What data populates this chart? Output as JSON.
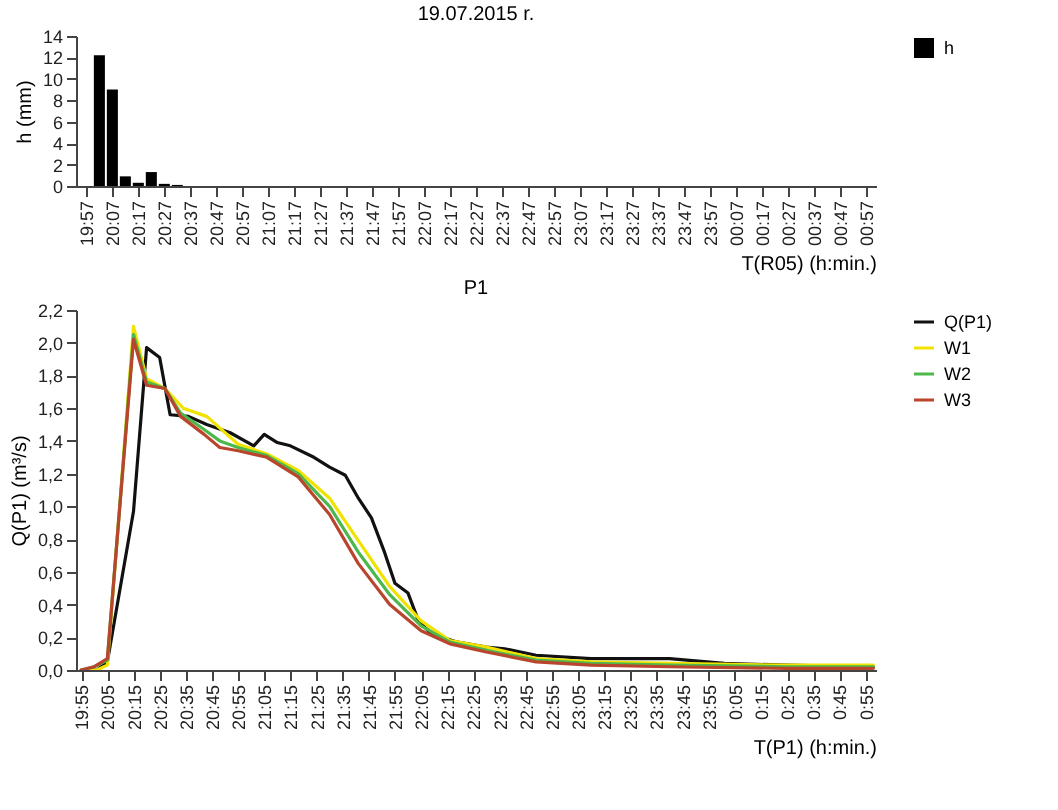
{
  "chart_data": [
    {
      "type": "bar",
      "title": "19.07.2015 r.",
      "xlabel": "T(R05) (h:min.)",
      "ylabel": "h (mm)",
      "legend": "right",
      "grid": false,
      "x": [
        "2015-07-19T20:02",
        "2015-07-19T20:07",
        "2015-07-19T20:12",
        "2015-07-19T20:17",
        "2015-07-19T20:22",
        "2015-07-19T20:27",
        "2015-07-19T20:32"
      ],
      "series": [
        {
          "name": "h",
          "color": "#000000",
          "values": [
            12.2,
            9.0,
            0.9,
            0.3,
            1.3,
            0.2,
            0.1
          ]
        }
      ],
      "xlim": [
        "2015-07-19T19:53",
        "2015-07-20T01:01"
      ],
      "ylim": [
        0,
        14
      ],
      "yticks": [
        0,
        2,
        4,
        6,
        8,
        10,
        12,
        14
      ],
      "xticks": [
        {
          "value": "2015-07-19T19:57",
          "label": "19:57"
        },
        {
          "value": "2015-07-19T20:07",
          "label": "20:07"
        },
        {
          "value": "2015-07-19T20:17",
          "label": "20:17"
        },
        {
          "value": "2015-07-19T20:27",
          "label": "20:27"
        },
        {
          "value": "2015-07-19T20:37",
          "label": "20:37"
        },
        {
          "value": "2015-07-19T20:47",
          "label": "20:47"
        },
        {
          "value": "2015-07-19T20:57",
          "label": "20:57"
        },
        {
          "value": "2015-07-19T21:07",
          "label": "21:07"
        },
        {
          "value": "2015-07-19T21:17",
          "label": "21:17"
        },
        {
          "value": "2015-07-19T21:27",
          "label": "21:27"
        },
        {
          "value": "2015-07-19T21:37",
          "label": "21:37"
        },
        {
          "value": "2015-07-19T21:47",
          "label": "21:47"
        },
        {
          "value": "2015-07-19T21:57",
          "label": "21:57"
        },
        {
          "value": "2015-07-19T22:07",
          "label": "22:07"
        },
        {
          "value": "2015-07-19T22:17",
          "label": "22:17"
        },
        {
          "value": "2015-07-19T22:27",
          "label": "22:27"
        },
        {
          "value": "2015-07-19T22:37",
          "label": "22:37"
        },
        {
          "value": "2015-07-19T22:47",
          "label": "22:47"
        },
        {
          "value": "2015-07-19T22:57",
          "label": "22:57"
        },
        {
          "value": "2015-07-19T23:07",
          "label": "23:07"
        },
        {
          "value": "2015-07-19T23:17",
          "label": "23:17"
        },
        {
          "value": "2015-07-19T23:27",
          "label": "23:27"
        },
        {
          "value": "2015-07-19T23:37",
          "label": "23:37"
        },
        {
          "value": "2015-07-19T23:47",
          "label": "23:47"
        },
        {
          "value": "2015-07-19T23:57",
          "label": "23:57"
        },
        {
          "value": "2015-07-20T00:07",
          "label": "00:07"
        },
        {
          "value": "2015-07-20T00:17",
          "label": "00:17"
        },
        {
          "value": "2015-07-20T00:27",
          "label": "00:27"
        },
        {
          "value": "2015-07-20T00:37",
          "label": "00:37"
        },
        {
          "value": "2015-07-20T00:47",
          "label": "00:47"
        },
        {
          "value": "2015-07-20T00:57",
          "label": "00:57"
        }
      ]
    },
    {
      "type": "line",
      "title": "P1",
      "xlabel": "T(P1) (h:min.)",
      "ylabel": "Q(P1) (m³/s)",
      "legend": "right",
      "grid": false,
      "line_style": "solid",
      "series": [
        {
          "name": "Q(P1)",
          "color": "#111111",
          "x": [
            "2015-07-19T19:55",
            "2015-07-19T20:01",
            "2015-07-19T20:05",
            "2015-07-19T20:15",
            "2015-07-19T20:20",
            "2015-07-19T20:25",
            "2015-07-19T20:29",
            "2015-07-19T20:36",
            "2015-07-19T20:43",
            "2015-07-19T20:52",
            "2015-07-19T21:01",
            "2015-07-19T21:05",
            "2015-07-19T21:10",
            "2015-07-19T21:15",
            "2015-07-19T21:24",
            "2015-07-19T21:30",
            "2015-07-19T21:36",
            "2015-07-19T21:41",
            "2015-07-19T21:46",
            "2015-07-19T21:51",
            "2015-07-19T21:55",
            "2015-07-19T22:00",
            "2015-07-19T22:04",
            "2015-07-19T22:09",
            "2015-07-19T22:19",
            "2015-07-19T22:30",
            "2015-07-19T22:37",
            "2015-07-19T22:49",
            "2015-07-19T23:10",
            "2015-07-19T23:40",
            "2015-07-20T00:01",
            "2015-07-20T00:25",
            "2015-07-20T00:58"
          ],
          "values": [
            0,
            0,
            0.05,
            0.97,
            1.97,
            1.91,
            1.56,
            1.55,
            1.5,
            1.45,
            1.37,
            1.44,
            1.39,
            1.37,
            1.3,
            1.24,
            1.19,
            1.05,
            0.93,
            0.72,
            0.53,
            0.47,
            0.3,
            0.22,
            0.17,
            0.14,
            0.13,
            0.09,
            0.07,
            0.07,
            0.04,
            0.03,
            0.02
          ]
        },
        {
          "name": "W1",
          "color": "#f2e200",
          "x": [
            "2015-07-19T19:55",
            "2015-07-19T20:01",
            "2015-07-19T20:05",
            "2015-07-19T20:15",
            "2015-07-19T20:20",
            "2015-07-19T20:27",
            "2015-07-19T20:34",
            "2015-07-19T20:43",
            "2015-07-19T20:55",
            "2015-07-19T21:06",
            "2015-07-19T21:18",
            "2015-07-19T21:30",
            "2015-07-19T21:41",
            "2015-07-19T21:53",
            "2015-07-19T22:05",
            "2015-07-19T22:16",
            "2015-07-19T22:30",
            "2015-07-19T22:49",
            "2015-07-19T23:10",
            "2015-07-19T23:40",
            "2015-07-20T00:25",
            "2015-07-20T00:58"
          ],
          "values": [
            0,
            0,
            0.03,
            2.1,
            1.78,
            1.72,
            1.6,
            1.55,
            1.38,
            1.32,
            1.22,
            1.05,
            0.79,
            0.51,
            0.3,
            0.18,
            0.14,
            0.07,
            0.05,
            0.04,
            0.03,
            0.03
          ]
        },
        {
          "name": "W2",
          "color": "#4cb84c",
          "x": [
            "2015-07-19T19:55",
            "2015-07-19T20:00",
            "2015-07-19T20:05",
            "2015-07-19T20:15",
            "2015-07-19T20:20",
            "2015-07-19T20:27",
            "2015-07-19T20:33",
            "2015-07-19T20:42",
            "2015-07-19T20:48",
            "2015-07-19T20:55",
            "2015-07-19T21:06",
            "2015-07-19T21:18",
            "2015-07-19T21:30",
            "2015-07-19T21:41",
            "2015-07-19T21:53",
            "2015-07-19T22:05",
            "2015-07-19T22:16",
            "2015-07-19T22:30",
            "2015-07-19T22:49",
            "2015-07-19T23:10",
            "2015-07-19T23:40",
            "2015-07-20T00:25",
            "2015-07-20T00:58"
          ],
          "values": [
            0,
            0.02,
            0.06,
            2.05,
            1.76,
            1.72,
            1.57,
            1.47,
            1.4,
            1.36,
            1.31,
            1.2,
            1.0,
            0.72,
            0.46,
            0.27,
            0.17,
            0.12,
            0.06,
            0.04,
            0.03,
            0.02,
            0.02
          ]
        },
        {
          "name": "W3",
          "color": "#b8452c",
          "x": [
            "2015-07-19T19:55",
            "2015-07-19T20:00",
            "2015-07-19T20:05",
            "2015-07-19T20:15",
            "2015-07-19T20:20",
            "2015-07-19T20:27",
            "2015-07-19T20:33",
            "2015-07-19T20:42",
            "2015-07-19T20:48",
            "2015-07-19T20:55",
            "2015-07-19T21:06",
            "2015-07-19T21:18",
            "2015-07-19T21:30",
            "2015-07-19T21:41",
            "2015-07-19T21:53",
            "2015-07-19T22:05",
            "2015-07-19T22:16",
            "2015-07-19T22:30",
            "2015-07-19T22:49",
            "2015-07-19T23:10",
            "2015-07-19T23:40",
            "2015-07-20T00:25",
            "2015-07-20T00:58"
          ],
          "values": [
            0,
            0.02,
            0.07,
            2.02,
            1.74,
            1.72,
            1.55,
            1.44,
            1.36,
            1.34,
            1.3,
            1.18,
            0.95,
            0.65,
            0.4,
            0.24,
            0.16,
            0.11,
            0.05,
            0.03,
            0.02,
            0.01,
            0.01
          ]
        }
      ],
      "xlim": [
        "2015-07-19T19:53",
        "2015-07-20T00:59"
      ],
      "ylim": [
        0,
        2.2
      ],
      "yticks": [
        {
          "value": 0,
          "label": "0,0"
        },
        {
          "value": 0.2,
          "label": "0,2"
        },
        {
          "value": 0.4,
          "label": "0,4"
        },
        {
          "value": 0.6,
          "label": "0,6"
        },
        {
          "value": 0.8,
          "label": "0,8"
        },
        {
          "value": 1.0,
          "label": "1,0"
        },
        {
          "value": 1.2,
          "label": "1,2"
        },
        {
          "value": 1.4,
          "label": "1,4"
        },
        {
          "value": 1.6,
          "label": "1,6"
        },
        {
          "value": 1.8,
          "label": "1,8"
        },
        {
          "value": 2.0,
          "label": "2,0"
        },
        {
          "value": 2.2,
          "label": "2,2"
        }
      ],
      "xticks": [
        {
          "value": "2015-07-19T19:55",
          "label": "19:55"
        },
        {
          "value": "2015-07-19T20:05",
          "label": "20:05"
        },
        {
          "value": "2015-07-19T20:15",
          "label": "20:15"
        },
        {
          "value": "2015-07-19T20:25",
          "label": "20:25"
        },
        {
          "value": "2015-07-19T20:35",
          "label": "20:35"
        },
        {
          "value": "2015-07-19T20:45",
          "label": "20:45"
        },
        {
          "value": "2015-07-19T20:55",
          "label": "20:55"
        },
        {
          "value": "2015-07-19T21:05",
          "label": "21:05"
        },
        {
          "value": "2015-07-19T21:15",
          "label": "21:15"
        },
        {
          "value": "2015-07-19T21:25",
          "label": "21:25"
        },
        {
          "value": "2015-07-19T21:35",
          "label": "21:35"
        },
        {
          "value": "2015-07-19T21:45",
          "label": "21:45"
        },
        {
          "value": "2015-07-19T21:55",
          "label": "21:55"
        },
        {
          "value": "2015-07-19T22:05",
          "label": "22:05"
        },
        {
          "value": "2015-07-19T22:15",
          "label": "22:15"
        },
        {
          "value": "2015-07-19T22:25",
          "label": "22:25"
        },
        {
          "value": "2015-07-19T22:35",
          "label": "22:35"
        },
        {
          "value": "2015-07-19T22:45",
          "label": "22:45"
        },
        {
          "value": "2015-07-19T22:55",
          "label": "22:55"
        },
        {
          "value": "2015-07-19T23:05",
          "label": "23:05"
        },
        {
          "value": "2015-07-19T23:15",
          "label": "23:15"
        },
        {
          "value": "2015-07-19T23:25",
          "label": "23:25"
        },
        {
          "value": "2015-07-19T23:35",
          "label": "23:35"
        },
        {
          "value": "2015-07-19T23:45",
          "label": "23:45"
        },
        {
          "value": "2015-07-19T23:55",
          "label": "23:55"
        },
        {
          "value": "2015-07-20T00:05",
          "label": "0:05"
        },
        {
          "value": "2015-07-20T00:15",
          "label": "0:15"
        },
        {
          "value": "2015-07-20T00:25",
          "label": "0:25"
        },
        {
          "value": "2015-07-20T00:35",
          "label": "0:35"
        },
        {
          "value": "2015-07-20T00:45",
          "label": "0:45"
        },
        {
          "value": "2015-07-20T00:55",
          "label": "0:55"
        }
      ]
    }
  ]
}
